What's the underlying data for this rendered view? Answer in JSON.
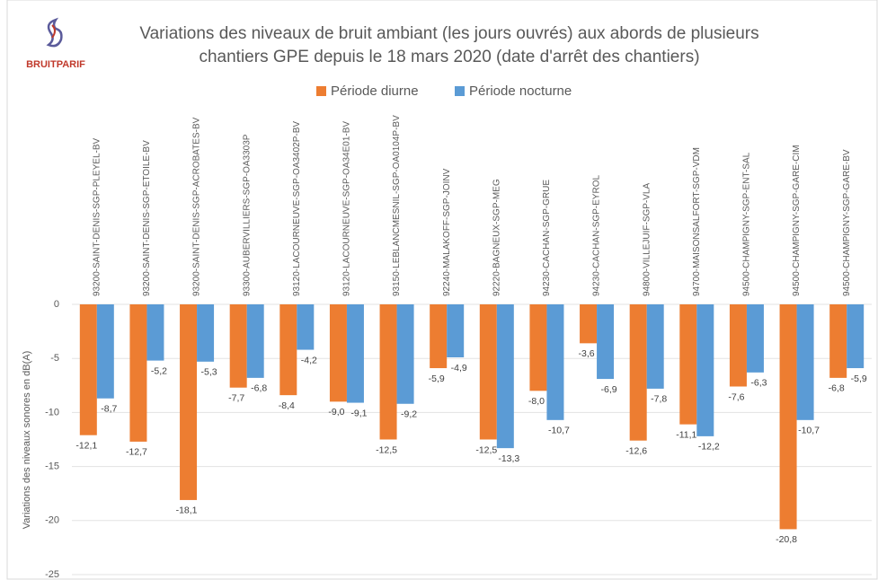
{
  "logo": "BRUITPARIF",
  "chart_data": {
    "type": "bar",
    "title": [
      "Variations des niveaux de bruit ambiant (les jours ouvrés) aux abords de plusieurs",
      "chantiers GPE depuis le 18 mars 2020 (date d'arrêt des chantiers)"
    ],
    "y_label": "Variations des niveaux sonores en dB(A)",
    "categories": [
      "93200-SAINT-DENIS-SGP-PLEYEL-BV",
      "93200-SAINT-DENIS-SGP-ETOILE-BV",
      "93200-SAINT-DENIS-SGP-ACROBATES-BV",
      "93300-AUBERVILLIERS-SGP-OA3303P",
      "93120-LACOURNEUVE-SGP-OA3402P-BV",
      "93120-LACOURNEUVE-SGP-OA34E01-BV",
      "93150-LEBLANCMESNIL-SGP-OA0104P-BV",
      "92240-MALAKOFF-SGP-JOINV",
      "92220-BAGNEUX-SGP-MEG",
      "94230-CACHAN-SGP-GRUE",
      "94230-CACHAN-SGP-EYROL",
      "94800-VILLEJUIF-SGP-VLA",
      "94700-MAISONSALFORT-SGP-VDM",
      "94500-CHAMPIGNY-SGP-ENT-SAL",
      "94500-CHAMPIGNY-SGP-GARE-CIM",
      "94500-CHAMPIGNY-SGP-GARE-BV"
    ],
    "series": [
      {
        "name": "Période diurne",
        "color": "#ed7d31",
        "values": [
          -12.1,
          -12.7,
          -18.1,
          -7.7,
          -8.4,
          -9.0,
          -12.5,
          -5.9,
          -12.5,
          -8.0,
          -3.6,
          -12.6,
          -11.1,
          -7.6,
          -20.8,
          -6.8
        ],
        "value_labels": [
          "-12,1",
          "-12,7",
          "-18,1",
          "-7,7",
          "-8,4",
          "-9,0",
          "-12,5",
          "-5,9",
          "-12,5",
          "-8,0",
          "-3,6",
          "-12,6",
          "-11,1",
          "-7,6",
          "-20,8",
          "-6,8"
        ]
      },
      {
        "name": "Période nocturne",
        "color": "#5b9bd5",
        "values": [
          -8.7,
          -5.2,
          -5.3,
          -6.8,
          -4.2,
          -9.1,
          -9.2,
          -4.9,
          -13.3,
          -10.7,
          -6.9,
          -7.8,
          -12.2,
          -6.3,
          -10.7,
          -5.9
        ],
        "value_labels": [
          "-8,7",
          "-5,2",
          "-5,3",
          "-6,8",
          "-4,2",
          "-9,1",
          "-9,2",
          "-4,9",
          "-13,3",
          "-10,7",
          "-6,9",
          "-7,8",
          "-12,2",
          "-6,3",
          "-10,7",
          "-5,9"
        ]
      }
    ],
    "ylim": [
      -25,
      0
    ],
    "yticks": [
      0,
      -5,
      -10,
      -15,
      -20,
      -25
    ],
    "grid": true,
    "legend": "top"
  }
}
